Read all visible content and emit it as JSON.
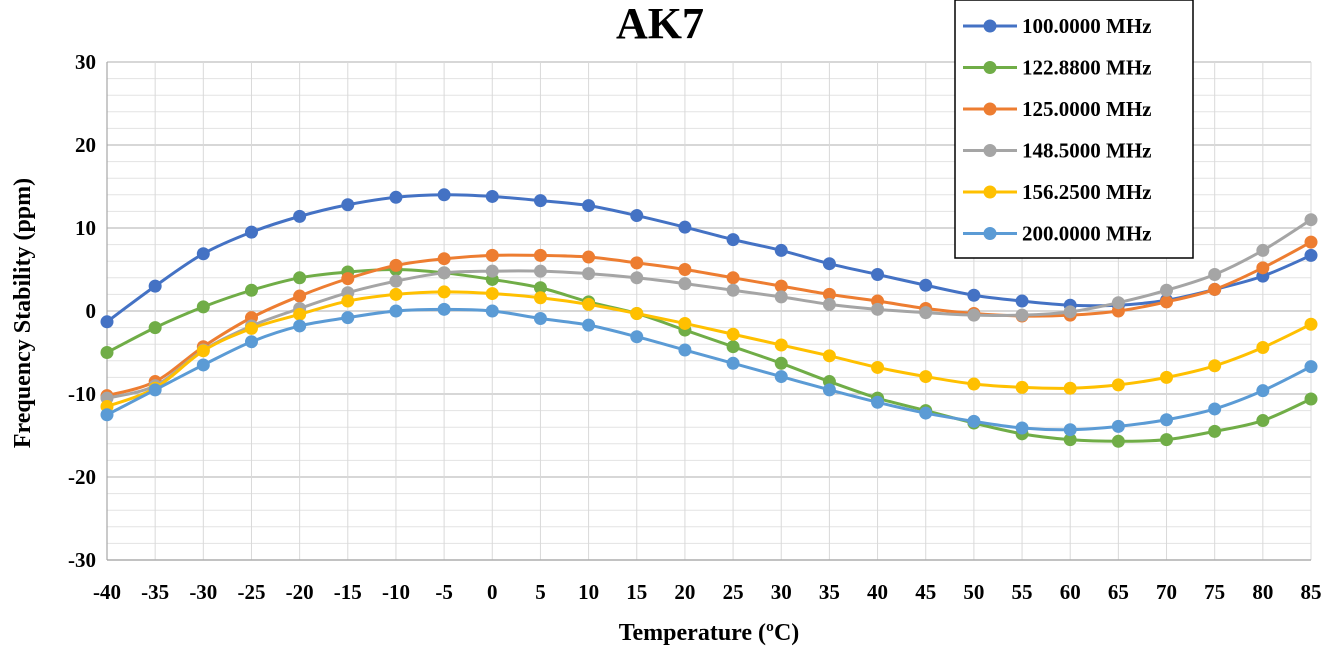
{
  "chart_data": {
    "type": "line",
    "title": "AK7",
    "xlabel": "Temperature (ºC)",
    "ylabel": "Frequency Stability (ppm)",
    "x": [
      -40,
      -35,
      -30,
      -25,
      -20,
      -15,
      -10,
      -5,
      0,
      5,
      10,
      15,
      20,
      25,
      30,
      35,
      40,
      45,
      50,
      55,
      60,
      65,
      70,
      75,
      80,
      85
    ],
    "x_tick_labels": [
      "-40",
      "-35",
      "-30",
      "-25",
      "-20",
      "-15",
      "-10",
      "-5",
      "0",
      "5",
      "10",
      "15",
      "20",
      "25",
      "30",
      "35",
      "40",
      "45",
      "50",
      "55",
      "60",
      "65",
      "70",
      "75",
      "80",
      "85"
    ],
    "ylim": [
      -30,
      30
    ],
    "y_ticks": [
      -30,
      -20,
      -10,
      0,
      10,
      20,
      30
    ],
    "y_tick_labels": [
      "-30",
      "-20",
      "-10",
      "0",
      "10",
      "20",
      "30"
    ],
    "grid": "horizontal major and minor gridlines, vertical gridlines at each category",
    "legend_position": "top-right",
    "series": [
      {
        "name": "100.0000 MHz",
        "color": "#4472C4",
        "values": [
          -1.3,
          3.0,
          6.9,
          9.5,
          11.4,
          12.8,
          13.7,
          14.0,
          13.8,
          13.3,
          12.7,
          11.5,
          10.1,
          8.6,
          7.3,
          5.7,
          4.4,
          3.1,
          1.9,
          1.2,
          0.7,
          0.7,
          1.3,
          2.6,
          4.2,
          6.7
        ]
      },
      {
        "name": "122.8800 MHz",
        "color": "#70AD47",
        "values": [
          -5.0,
          -2.0,
          0.5,
          2.5,
          4.0,
          4.7,
          5.0,
          4.6,
          3.8,
          2.8,
          1.1,
          -0.3,
          -2.3,
          -4.3,
          -6.3,
          -8.5,
          -10.5,
          -12.0,
          -13.5,
          -14.8,
          -15.5,
          -15.7,
          -15.5,
          -14.5,
          -13.2,
          -10.6
        ]
      },
      {
        "name": "125.0000 MHz",
        "color": "#ED7D31",
        "values": [
          -10.2,
          -8.5,
          -4.3,
          -0.8,
          1.8,
          3.9,
          5.5,
          6.3,
          6.7,
          6.7,
          6.5,
          5.8,
          5.0,
          4.0,
          3.0,
          2.0,
          1.2,
          0.3,
          -0.3,
          -0.6,
          -0.5,
          0.0,
          1.1,
          2.6,
          5.2,
          8.3
        ]
      },
      {
        "name": "148.5000 MHz",
        "color": "#A5A5A5",
        "values": [
          -10.5,
          -9.0,
          -4.7,
          -1.8,
          0.3,
          2.2,
          3.6,
          4.6,
          4.8,
          4.8,
          4.5,
          4.0,
          3.3,
          2.5,
          1.7,
          0.8,
          0.2,
          -0.2,
          -0.5,
          -0.5,
          -0.1,
          1.0,
          2.5,
          4.4,
          7.3,
          11.0
        ]
      },
      {
        "name": "156.2500 MHz",
        "color": "#FFC000",
        "values": [
          -11.5,
          -9.3,
          -4.8,
          -2.1,
          -0.4,
          1.2,
          2.0,
          2.3,
          2.1,
          1.6,
          0.8,
          -0.3,
          -1.5,
          -2.8,
          -4.1,
          -5.4,
          -6.8,
          -7.9,
          -8.8,
          -9.2,
          -9.3,
          -8.9,
          -8.0,
          -6.6,
          -4.4,
          -1.6
        ]
      },
      {
        "name": "200.0000 MHz",
        "color": "#5B9BD5",
        "values": [
          -12.5,
          -9.5,
          -6.5,
          -3.7,
          -1.8,
          -0.8,
          0.0,
          0.2,
          0.0,
          -0.9,
          -1.7,
          -3.1,
          -4.7,
          -6.3,
          -7.9,
          -9.5,
          -11.0,
          -12.3,
          -13.3,
          -14.1,
          -14.3,
          -13.9,
          -13.1,
          -11.8,
          -9.6,
          -6.7
        ]
      }
    ]
  }
}
